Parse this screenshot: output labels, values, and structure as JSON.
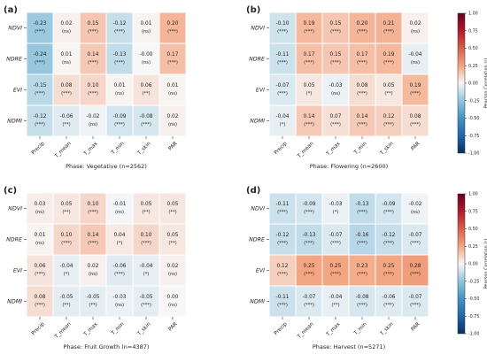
{
  "colorbar": {
    "label": "Pearson Correlation (r)",
    "ticks": [
      "1.00",
      "0.75",
      "0.50",
      "0.25",
      "0.00",
      "-0.25",
      "-0.50",
      "-0.75",
      "-1.00"
    ],
    "tick_values": [
      1.0,
      0.75,
      0.5,
      0.25,
      0.0,
      -0.25,
      -0.5,
      -0.75,
      -1.0
    ]
  },
  "chart_data": [
    {
      "panel": "(a)",
      "type": "heatmap",
      "title": "Phase: Vegetative (n=2562)",
      "rows": [
        "NDVI",
        "NDRE",
        "EVI",
        "NDMI"
      ],
      "columns": [
        "Precip",
        "T_mean",
        "T_max",
        "T_min",
        "T_skin",
        "PAR"
      ],
      "values": [
        [
          -0.23,
          0.02,
          0.15,
          -0.12,
          0.01,
          0.2
        ],
        [
          -0.24,
          0.01,
          0.14,
          -0.13,
          -0.0,
          0.17
        ],
        [
          -0.15,
          0.08,
          0.1,
          0.01,
          0.06,
          0.01
        ],
        [
          -0.12,
          -0.06,
          -0.02,
          -0.09,
          -0.08,
          0.02
        ]
      ],
      "value_labels": [
        [
          "-0.23",
          "0.02",
          "0.15",
          "-0.12",
          "0.01",
          "0.20"
        ],
        [
          "-0.24",
          "0.01",
          "0.14",
          "-0.13",
          "-0.00",
          "0.17"
        ],
        [
          "-0.15",
          "0.08",
          "0.10",
          "0.01",
          "0.06",
          "0.01"
        ],
        [
          "-0.12",
          "-0.06",
          "-0.02",
          "-0.09",
          "-0.08",
          "0.02"
        ]
      ],
      "significance": [
        [
          "(***)",
          "(ns)",
          "(***)",
          "(***)",
          "(ns)",
          "(***)"
        ],
        [
          "(***)",
          "(ns)",
          "(***)",
          "(***)",
          "(ns)",
          "(***)"
        ],
        [
          "(***)",
          "(***)",
          "(***)",
          "(ns)",
          "(**)",
          "(ns)"
        ],
        [
          "(***)",
          "(**)",
          "(ns)",
          "(***)",
          "(***)",
          "(ns)"
        ]
      ],
      "vmin": -1.0,
      "vmax": 1.0
    },
    {
      "panel": "(b)",
      "type": "heatmap",
      "title": "Phase: Flowering (n=2600)",
      "rows": [
        "NDVI",
        "NDRE",
        "EVI",
        "NDMI"
      ],
      "columns": [
        "Precip",
        "T_mean",
        "T_max",
        "T_min",
        "T_skin",
        "PAR"
      ],
      "values": [
        [
          -0.1,
          0.19,
          0.15,
          0.2,
          0.21,
          0.02
        ],
        [
          -0.11,
          0.17,
          0.15,
          0.17,
          0.19,
          -0.04
        ],
        [
          -0.07,
          0.05,
          -0.03,
          0.08,
          0.05,
          0.19
        ],
        [
          -0.04,
          0.14,
          0.07,
          0.14,
          0.12,
          0.08
        ]
      ],
      "value_labels": [
        [
          "-0.10",
          "0.19",
          "0.15",
          "0.20",
          "0.21",
          "0.02"
        ],
        [
          "-0.11",
          "0.17",
          "0.15",
          "0.17",
          "0.19",
          "-0.04"
        ],
        [
          "-0.07",
          "0.05",
          "-0.03",
          "0.08",
          "0.05",
          "0.19"
        ],
        [
          "-0.04",
          "0.14",
          "0.07",
          "0.14",
          "0.12",
          "0.08"
        ]
      ],
      "significance": [
        [
          "(***)",
          "(***)",
          "(***)",
          "(***)",
          "(***)",
          "(ns)"
        ],
        [
          "(***)",
          "(***)",
          "(***)",
          "(***)",
          "(***)",
          "(ns)"
        ],
        [
          "(***)",
          "(*)",
          "(ns)",
          "(***)",
          "(**)",
          "(***)"
        ],
        [
          "(*)",
          "(***)",
          "(***)",
          "(***)",
          "(***)",
          "(***)"
        ]
      ],
      "vmin": -1.0,
      "vmax": 1.0
    },
    {
      "panel": "(c)",
      "type": "heatmap",
      "title": "Phase: Fruit Growth (n=4387)",
      "rows": [
        "NDVI",
        "NDRE",
        "EVI",
        "NDMI"
      ],
      "columns": [
        "Precip",
        "T_mean",
        "T_max",
        "T_min",
        "T_skin",
        "PAR"
      ],
      "values": [
        [
          0.03,
          0.05,
          0.1,
          -0.01,
          0.05,
          0.05
        ],
        [
          0.01,
          0.1,
          0.14,
          0.04,
          0.1,
          0.05
        ],
        [
          0.06,
          -0.04,
          0.02,
          -0.06,
          -0.04,
          0.02
        ],
        [
          0.08,
          -0.05,
          -0.05,
          -0.03,
          -0.05,
          0.0
        ]
      ],
      "value_labels": [
        [
          "0.03",
          "0.05",
          "0.10",
          "-0.01",
          "0.05",
          "0.05"
        ],
        [
          "0.01",
          "0.10",
          "0.14",
          "0.04",
          "0.10",
          "0.05"
        ],
        [
          "0.06",
          "-0.04",
          "0.02",
          "-0.06",
          "-0.04",
          "0.02"
        ],
        [
          "0.08",
          "-0.05",
          "-0.05",
          "-0.03",
          "-0.05",
          "0.00"
        ]
      ],
      "significance": [
        [
          "(ns)",
          "(**)",
          "(***)",
          "(ns)",
          "(**)",
          "(**)"
        ],
        [
          "(ns)",
          "(***)",
          "(***)",
          "(*)",
          "(***)",
          "(**)"
        ],
        [
          "(***)",
          "(*)",
          "(ns)",
          "(***)",
          "(*)",
          "(ns)"
        ],
        [
          "(***)",
          "(**)",
          "(**)",
          "(ns)",
          "(***)",
          "(ns)"
        ]
      ],
      "vmin": -1.0,
      "vmax": 1.0
    },
    {
      "panel": "(d)",
      "type": "heatmap",
      "title": "Phase: Harvest (n=5271)",
      "rows": [
        "NDVI",
        "NDRE",
        "EVI",
        "NDMI"
      ],
      "columns": [
        "Precip",
        "T_mean",
        "T_max",
        "T_min",
        "T_skin",
        "PAR"
      ],
      "values": [
        [
          -0.11,
          -0.09,
          -0.03,
          -0.13,
          -0.09,
          -0.02
        ],
        [
          -0.12,
          -0.13,
          -0.07,
          -0.16,
          -0.12,
          -0.07
        ],
        [
          0.12,
          0.25,
          0.25,
          0.23,
          0.25,
          0.28
        ],
        [
          -0.11,
          -0.07,
          -0.04,
          -0.08,
          -0.06,
          -0.07
        ]
      ],
      "value_labels": [
        [
          "-0.11",
          "-0.09",
          "-0.03",
          "-0.13",
          "-0.09",
          "-0.02"
        ],
        [
          "-0.12",
          "-0.13",
          "-0.07",
          "-0.16",
          "-0.12",
          "-0.07"
        ],
        [
          "0.12",
          "0.25",
          "0.25",
          "0.23",
          "0.25",
          "0.28"
        ],
        [
          "-0.11",
          "-0.07",
          "-0.04",
          "-0.08",
          "-0.06",
          "-0.07"
        ]
      ],
      "significance": [
        [
          "(***)",
          "(***)",
          "(*)",
          "(***)",
          "(***)",
          "(ns)"
        ],
        [
          "(***)",
          "(***)",
          "(***)",
          "(***)",
          "(***)",
          "(***)"
        ],
        [
          "(***)",
          "(***)",
          "(***)",
          "(***)",
          "(***)",
          "(***)"
        ],
        [
          "(***)",
          "(***)",
          "(**)",
          "(***)",
          "(***)",
          "(***)"
        ]
      ],
      "vmin": -1.0,
      "vmax": 1.0
    }
  ]
}
